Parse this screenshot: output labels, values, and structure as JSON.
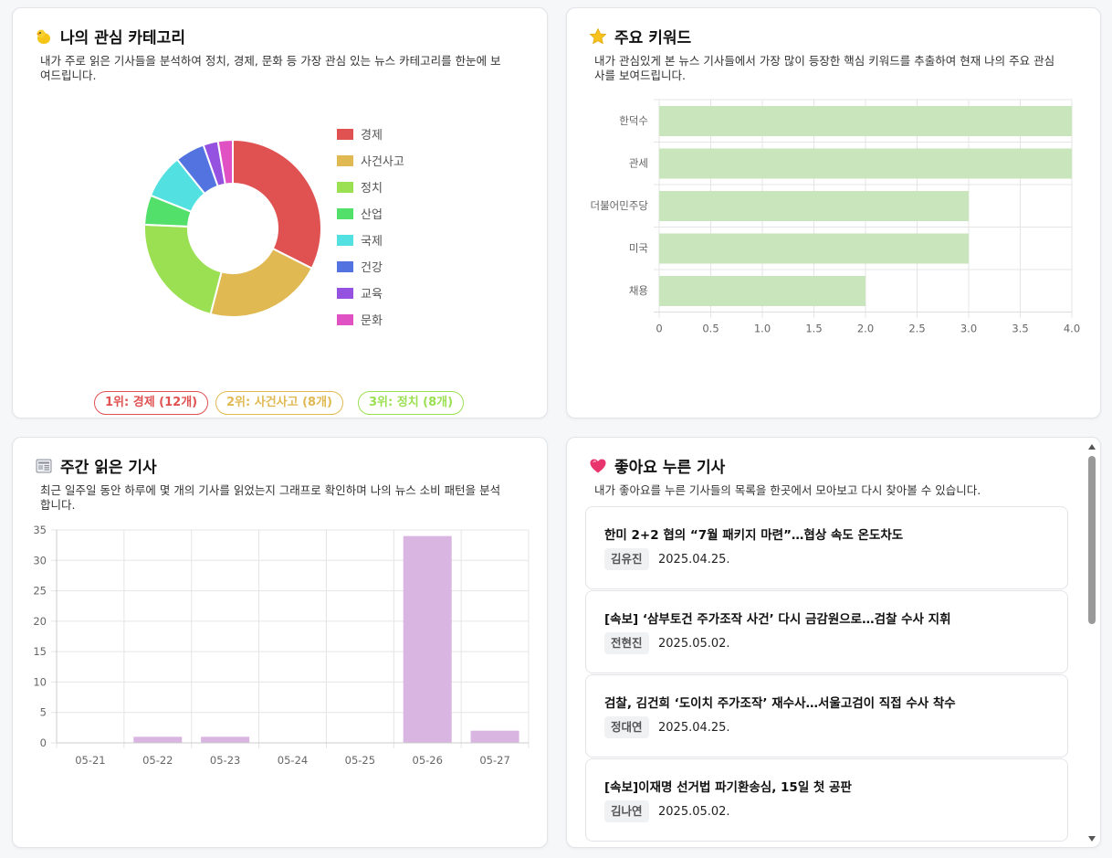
{
  "categories": {
    "title": "나의 관심 카테고리",
    "desc_line1": "내가 주로 읽은 기사들을 분석하여 정치, 경제, 문화 등 가장 관심 있는 뉴스 카테고리를 한눈에 보",
    "desc_line2": "여드립니다.",
    "legend": [
      {
        "label": "경제",
        "color": "#e05252"
      },
      {
        "label": "사건사고",
        "color": "#e0b952"
      },
      {
        "label": "정치",
        "color": "#9be052"
      },
      {
        "label": "산업",
        "color": "#52e06b"
      },
      {
        "label": "국제",
        "color": "#52e0e0"
      },
      {
        "label": "건강",
        "color": "#5273e0"
      },
      {
        "label": "교육",
        "color": "#9552e0"
      },
      {
        "label": "문화",
        "color": "#e052c4"
      }
    ],
    "ranks": [
      {
        "text": "1위: 경제 (12개)",
        "color": "#e05252"
      },
      {
        "text": "2위: 사건사고 (8개)",
        "color": "#e0b952"
      },
      {
        "text": "3위: 정치 (8개)",
        "color": "#9be052"
      }
    ]
  },
  "keywords": {
    "title": "주요 키워드",
    "desc_line1": "내가 관심있게 본 뉴스 기사들에서 가장 많이 등장한 핵심 키워드를 추출하여 현재 나의 주요 관심",
    "desc_line2": "사를 보여드립니다."
  },
  "weekly": {
    "title": "주간 읽은 기사",
    "desc_line1": "최근 일주일 동안 하루에 몇 개의 기사를 읽었는지 그래프로 확인하며 나의 뉴스 소비 패턴을 분석",
    "desc_line2": "합니다."
  },
  "liked": {
    "title": "좋아요 누른 기사",
    "desc": "내가 좋아요를 누른 기사들의 목록을 한곳에서 모아보고 다시 찾아볼 수 있습니다.",
    "articles": [
      {
        "title": "한미 2+2 협의 “7월 패키지 마련”…협상 속도 온도차도",
        "author": "김유진",
        "date": "2025.04.25."
      },
      {
        "title": "[속보] ‘삼부토건 주가조작 사건’ 다시 금감원으로…검찰 수사 지휘",
        "author": "전현진",
        "date": "2025.05.02."
      },
      {
        "title": "검찰, 김건희 ‘도이치 주가조작’ 재수사…서울고검이 직접 수사 착수",
        "author": "정대연",
        "date": "2025.04.25."
      },
      {
        "title": "[속보]이재명 선거법 파기환송심, 15일 첫 공판",
        "author": "김나연",
        "date": "2025.05.02."
      }
    ]
  },
  "chart_data": [
    {
      "type": "pie",
      "categories": [
        "경제",
        "사건사고",
        "정치",
        "산업",
        "국제",
        "건강",
        "교육",
        "문화"
      ],
      "values": [
        12,
        8,
        8,
        2,
        3,
        2,
        1,
        1
      ],
      "colors": [
        "#e05252",
        "#e0b952",
        "#9be052",
        "#52e06b",
        "#52e0e0",
        "#5273e0",
        "#9552e0",
        "#e052c4"
      ],
      "legend_position": "right"
    },
    {
      "type": "bar",
      "orientation": "horizontal",
      "categories": [
        "한덕수",
        "관세",
        "더불어민주당",
        "미국",
        "채용"
      ],
      "values": [
        4,
        4,
        3,
        3,
        2
      ],
      "xlim": [
        0,
        4
      ],
      "x_ticks": [
        "0",
        "0.5",
        "1.0",
        "1.5",
        "2.0",
        "2.5",
        "3.0",
        "3.5",
        "4.0"
      ],
      "color": "#c9e5bb"
    },
    {
      "type": "bar",
      "categories": [
        "05-21",
        "05-22",
        "05-23",
        "05-24",
        "05-25",
        "05-26",
        "05-27"
      ],
      "values": [
        0,
        1,
        1,
        0,
        0,
        34,
        2
      ],
      "ylim": [
        0,
        35
      ],
      "y_ticks": [
        "0",
        "5",
        "10",
        "15",
        "20",
        "25",
        "30",
        "35"
      ],
      "color": "#d9b5e2"
    }
  ]
}
